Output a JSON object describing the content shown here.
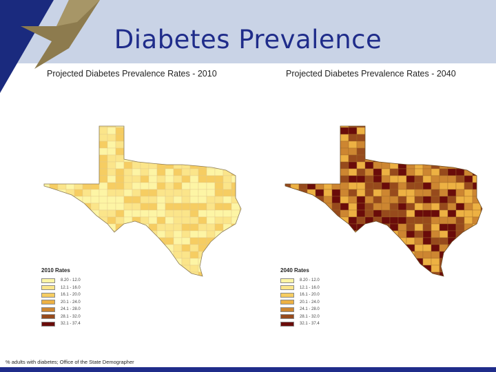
{
  "slide": {
    "title": "Diabetes Prevalence",
    "footer": "% adults with diabetes; Office of the State Demographer"
  },
  "colors": {
    "header_band": "#c9d3e6",
    "logo_navy": "#1a2a7e",
    "logo_gold": "#8d7b4e",
    "bottom_bar": "#1f2c8a"
  },
  "maps": [
    {
      "title": "Projected Diabetes Prevalence Rates - 2010",
      "legend_title": "2010 Rates",
      "dominant_classes": [
        0,
        1,
        2
      ]
    },
    {
      "title": "Projected Diabetes Prevalence Rates - 2040",
      "legend_title": "2040 Rates",
      "dominant_classes": [
        3,
        4,
        5,
        6
      ]
    }
  ],
  "legend_classes": [
    {
      "label": "8.20 - 12.0",
      "color": "#fdf5a5"
    },
    {
      "label": "12.1 - 16.0",
      "color": "#fbe58a"
    },
    {
      "label": "16.1 - 20.0",
      "color": "#f6cd62"
    },
    {
      "label": "20.1 - 24.0",
      "color": "#edb143"
    },
    {
      "label": "24.1 - 28.0",
      "color": "#cd8631"
    },
    {
      "label": "28.1 - 32.0",
      "color": "#974a1c"
    },
    {
      "label": "32.1 - 37.4",
      "color": "#6a0c0a"
    }
  ]
}
